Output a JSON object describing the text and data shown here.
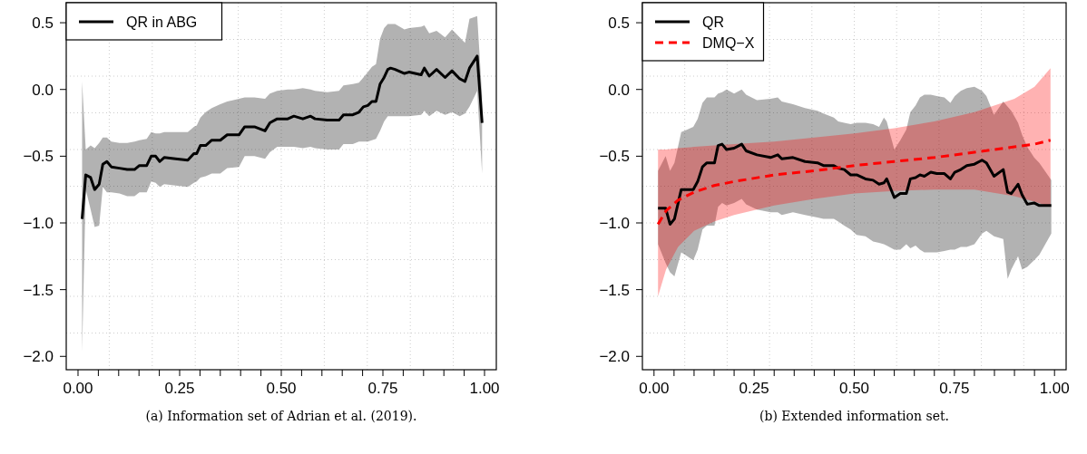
{
  "chart_data": [
    {
      "type": "line",
      "legend": "top left",
      "grid": true,
      "xlim": [
        -0.029,
        1.029
      ],
      "ylim": [
        -2.1,
        0.65
      ],
      "xticks": [
        {
          "value": 0,
          "label": "0.00"
        },
        {
          "value": 0.05,
          "label": null
        },
        {
          "value": 0.1,
          "label": null
        },
        {
          "value": 0.15,
          "label": null
        },
        {
          "value": 0.2,
          "label": null
        },
        {
          "value": 0.25,
          "label": "0.25"
        },
        {
          "value": 0.3,
          "label": null
        },
        {
          "value": 0.35,
          "label": null
        },
        {
          "value": 0.4,
          "label": null
        },
        {
          "value": 0.45,
          "label": null
        },
        {
          "value": 0.5,
          "label": "0.50"
        },
        {
          "value": 0.55,
          "label": null
        },
        {
          "value": 0.6,
          "label": null
        },
        {
          "value": 0.65,
          "label": null
        },
        {
          "value": 0.7,
          "label": null
        },
        {
          "value": 0.75,
          "label": "0.75"
        },
        {
          "value": 0.8,
          "label": null
        },
        {
          "value": 0.85,
          "label": null
        },
        {
          "value": 0.9,
          "label": null
        },
        {
          "value": 0.95,
          "label": null
        },
        {
          "value": 1,
          "label": "1.00"
        }
      ],
      "yticks": [
        {
          "value": 0.5,
          "label": "0.5"
        },
        {
          "value": 0,
          "label": "0.0"
        },
        {
          "value": -0.5,
          "label": "−0.5"
        },
        {
          "value": -1,
          "label": "−1.0"
        },
        {
          "value": -1.5,
          "label": "−1.5"
        },
        {
          "value": -2,
          "label": "−2.0"
        }
      ],
      "annotations": [
        "(a) Information set of Adrian et al. (2019)."
      ],
      "series": [
        {
          "name": "QR in ABG",
          "color": "#000000",
          "line_style": "solid",
          "x": [
            0.01,
            0.019,
            0.031,
            0.041,
            0.052,
            0.061,
            0.071,
            0.082,
            0.102,
            0.121,
            0.139,
            0.151,
            0.169,
            0.18,
            0.191,
            0.201,
            0.212,
            0.24,
            0.27,
            0.285,
            0.292,
            0.301,
            0.314,
            0.329,
            0.35,
            0.367,
            0.396,
            0.41,
            0.434,
            0.46,
            0.472,
            0.49,
            0.516,
            0.531,
            0.553,
            0.572,
            0.583,
            0.613,
            0.642,
            0.653,
            0.676,
            0.691,
            0.702,
            0.713,
            0.723,
            0.733,
            0.743,
            0.753,
            0.762,
            0.769,
            0.78,
            0.803,
            0.814,
            0.844,
            0.852,
            0.864,
            0.882,
            0.903,
            0.92,
            0.939,
            0.952,
            0.963,
            0.982,
            0.994
          ],
          "values": [
            -0.97,
            -0.64,
            -0.66,
            -0.75,
            -0.71,
            -0.56,
            -0.54,
            -0.58,
            -0.59,
            -0.6,
            -0.6,
            -0.57,
            -0.57,
            -0.5,
            -0.5,
            -0.54,
            -0.51,
            -0.52,
            -0.53,
            -0.48,
            -0.48,
            -0.42,
            -0.42,
            -0.38,
            -0.38,
            -0.34,
            -0.34,
            -0.28,
            -0.28,
            -0.31,
            -0.25,
            -0.22,
            -0.22,
            -0.2,
            -0.22,
            -0.2,
            -0.22,
            -0.23,
            -0.23,
            -0.19,
            -0.19,
            -0.17,
            -0.13,
            -0.12,
            -0.09,
            -0.09,
            0.04,
            0.09,
            0.15,
            0.16,
            0.15,
            0.12,
            0.13,
            0.11,
            0.16,
            0.1,
            0.15,
            0.09,
            0.14,
            0.08,
            0.06,
            0.16,
            0.25,
            -0.25
          ],
          "lower": [
            -1.97,
            -0.75,
            -0.9,
            -1.03,
            -1.02,
            -0.73,
            -0.77,
            -0.77,
            -0.78,
            -0.8,
            -0.8,
            -0.77,
            -0.77,
            -0.69,
            -0.7,
            -0.73,
            -0.71,
            -0.72,
            -0.73,
            -0.7,
            -0.69,
            -0.66,
            -0.65,
            -0.63,
            -0.63,
            -0.59,
            -0.58,
            -0.5,
            -0.5,
            -0.52,
            -0.47,
            -0.43,
            -0.43,
            -0.43,
            -0.44,
            -0.43,
            -0.44,
            -0.45,
            -0.45,
            -0.41,
            -0.41,
            -0.39,
            -0.39,
            -0.39,
            -0.38,
            -0.37,
            -0.31,
            -0.24,
            -0.2,
            -0.2,
            -0.2,
            -0.2,
            -0.2,
            -0.19,
            -0.16,
            -0.2,
            -0.16,
            -0.19,
            -0.17,
            -0.2,
            -0.18,
            -0.13,
            -0.01,
            -0.63
          ],
          "upper": [
            0.06,
            -0.45,
            -0.42,
            -0.44,
            -0.4,
            -0.36,
            -0.36,
            -0.39,
            -0.4,
            -0.4,
            -0.39,
            -0.38,
            -0.37,
            -0.32,
            -0.33,
            -0.33,
            -0.32,
            -0.32,
            -0.32,
            -0.28,
            -0.27,
            -0.21,
            -0.17,
            -0.14,
            -0.11,
            -0.09,
            -0.07,
            -0.06,
            -0.06,
            -0.07,
            -0.03,
            -0.01,
            0.0,
            0.0,
            0.01,
            0.0,
            -0.01,
            -0.02,
            -0.01,
            0.03,
            0.04,
            0.05,
            0.09,
            0.13,
            0.17,
            0.19,
            0.38,
            0.46,
            0.49,
            0.49,
            0.49,
            0.45,
            0.46,
            0.47,
            0.48,
            0.42,
            0.44,
            0.39,
            0.45,
            0.39,
            0.35,
            0.53,
            0.55,
            -0.05
          ]
        }
      ]
    },
    {
      "type": "line",
      "legend": "top left",
      "grid": true,
      "xlim": [
        -0.029,
        1.029
      ],
      "ylim": [
        -2.1,
        0.65
      ],
      "xticks": [
        {
          "value": 0,
          "label": "0.00"
        },
        {
          "value": 0.05,
          "label": null
        },
        {
          "value": 0.1,
          "label": null
        },
        {
          "value": 0.15,
          "label": null
        },
        {
          "value": 0.2,
          "label": null
        },
        {
          "value": 0.25,
          "label": "0.25"
        },
        {
          "value": 0.3,
          "label": null
        },
        {
          "value": 0.35,
          "label": null
        },
        {
          "value": 0.4,
          "label": null
        },
        {
          "value": 0.45,
          "label": null
        },
        {
          "value": 0.5,
          "label": "0.50"
        },
        {
          "value": 0.55,
          "label": null
        },
        {
          "value": 0.6,
          "label": null
        },
        {
          "value": 0.65,
          "label": null
        },
        {
          "value": 0.7,
          "label": null
        },
        {
          "value": 0.75,
          "label": "0.75"
        },
        {
          "value": 0.8,
          "label": null
        },
        {
          "value": 0.85,
          "label": null
        },
        {
          "value": 0.9,
          "label": null
        },
        {
          "value": 0.95,
          "label": null
        },
        {
          "value": 1,
          "label": "1.00"
        }
      ],
      "yticks": [
        {
          "value": 0.5,
          "label": "0.5"
        },
        {
          "value": 0,
          "label": "0.0"
        },
        {
          "value": -0.5,
          "label": "−0.5"
        },
        {
          "value": -1,
          "label": "−1.0"
        },
        {
          "value": -1.5,
          "label": "−1.5"
        },
        {
          "value": -2,
          "label": "−2.0"
        }
      ],
      "annotations": [
        "(b) Extended information set."
      ],
      "series": [
        {
          "name": "QR",
          "color": "#000000",
          "line_style": "solid",
          "x": [
            0.01,
            0.029,
            0.04,
            0.051,
            0.068,
            0.083,
            0.098,
            0.109,
            0.121,
            0.132,
            0.151,
            0.16,
            0.17,
            0.181,
            0.2,
            0.219,
            0.23,
            0.257,
            0.291,
            0.309,
            0.319,
            0.347,
            0.377,
            0.408,
            0.423,
            0.449,
            0.46,
            0.475,
            0.491,
            0.506,
            0.528,
            0.547,
            0.562,
            0.574,
            0.581,
            0.6,
            0.615,
            0.63,
            0.64,
            0.653,
            0.664,
            0.675,
            0.691,
            0.706,
            0.725,
            0.74,
            0.751,
            0.766,
            0.781,
            0.8,
            0.819,
            0.83,
            0.849,
            0.872,
            0.883,
            0.892,
            0.909,
            0.919,
            0.932,
            0.949,
            0.962,
            0.992
          ],
          "values": [
            -0.89,
            -0.89,
            -1.01,
            -0.97,
            -0.75,
            -0.75,
            -0.75,
            -0.69,
            -0.58,
            -0.55,
            -0.55,
            -0.42,
            -0.41,
            -0.45,
            -0.44,
            -0.41,
            -0.46,
            -0.49,
            -0.51,
            -0.49,
            -0.52,
            -0.51,
            -0.54,
            -0.55,
            -0.57,
            -0.57,
            -0.59,
            -0.6,
            -0.64,
            -0.64,
            -0.67,
            -0.68,
            -0.71,
            -0.7,
            -0.67,
            -0.81,
            -0.78,
            -0.78,
            -0.67,
            -0.66,
            -0.64,
            -0.65,
            -0.62,
            -0.63,
            -0.63,
            -0.67,
            -0.62,
            -0.6,
            -0.57,
            -0.56,
            -0.53,
            -0.55,
            -0.65,
            -0.6,
            -0.77,
            -0.78,
            -0.71,
            -0.79,
            -0.86,
            -0.85,
            -0.87,
            -0.87
          ],
          "lower": [
            -1.16,
            -1.3,
            -1.37,
            -1.4,
            -1.22,
            -1.25,
            -1.28,
            -1.2,
            -1.05,
            -1.02,
            -1.02,
            -0.88,
            -0.85,
            -0.87,
            -0.85,
            -0.82,
            -0.86,
            -0.9,
            -0.92,
            -0.92,
            -0.94,
            -0.92,
            -0.94,
            -0.96,
            -0.97,
            -0.97,
            -0.99,
            -1.02,
            -1.05,
            -1.09,
            -1.1,
            -1.14,
            -1.15,
            -1.16,
            -1.17,
            -1.2,
            -1.2,
            -1.16,
            -1.19,
            -1.17,
            -1.2,
            -1.22,
            -1.22,
            -1.22,
            -1.21,
            -1.2,
            -1.2,
            -1.18,
            -1.18,
            -1.16,
            -1.08,
            -1.06,
            -1.1,
            -1.12,
            -1.42,
            -1.35,
            -1.25,
            -1.35,
            -1.33,
            -1.28,
            -1.24,
            -1.08
          ],
          "upper": [
            -0.61,
            -0.5,
            -0.61,
            -0.55,
            -0.32,
            -0.3,
            -0.28,
            -0.22,
            -0.1,
            -0.06,
            -0.06,
            -0.03,
            -0.02,
            0.0,
            -0.03,
            0.0,
            -0.04,
            -0.08,
            -0.07,
            -0.06,
            -0.09,
            -0.11,
            -0.14,
            -0.16,
            -0.18,
            -0.21,
            -0.24,
            -0.25,
            -0.26,
            -0.25,
            -0.25,
            -0.26,
            -0.28,
            -0.21,
            -0.24,
            -0.45,
            -0.38,
            -0.3,
            -0.17,
            -0.12,
            -0.06,
            -0.04,
            -0.04,
            -0.05,
            -0.06,
            -0.1,
            -0.05,
            -0.01,
            0.01,
            0.02,
            -0.01,
            -0.05,
            -0.19,
            -0.09,
            -0.13,
            -0.16,
            -0.25,
            -0.34,
            -0.43,
            -0.51,
            -0.55,
            -0.68
          ]
        },
        {
          "name": "DMQ−X",
          "color": "#ff0000",
          "line_style": "dashed",
          "x": [
            0.01,
            0.03,
            0.06,
            0.1,
            0.15,
            0.2,
            0.3,
            0.4,
            0.5,
            0.6,
            0.7,
            0.8,
            0.9,
            0.95,
            0.99
          ],
          "values": [
            -1.01,
            -0.91,
            -0.83,
            -0.77,
            -0.72,
            -0.69,
            -0.64,
            -0.61,
            -0.57,
            -0.54,
            -0.51,
            -0.47,
            -0.43,
            -0.41,
            -0.38
          ],
          "lower": [
            -1.55,
            -1.35,
            -1.18,
            -1.06,
            -0.99,
            -0.94,
            -0.87,
            -0.82,
            -0.78,
            -0.76,
            -0.75,
            -0.75,
            -0.8,
            -0.84,
            -0.88
          ],
          "upper": [
            -0.45,
            -0.45,
            -0.44,
            -0.43,
            -0.42,
            -0.41,
            -0.39,
            -0.36,
            -0.33,
            -0.29,
            -0.24,
            -0.17,
            -0.07,
            0.02,
            0.16
          ]
        }
      ]
    }
  ]
}
